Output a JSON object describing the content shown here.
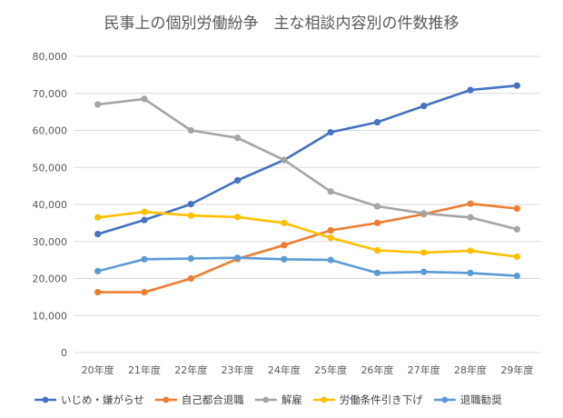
{
  "chart_data": {
    "type": "line",
    "title": "民事上の個別労働紛争　主な相談内容別の件数推移",
    "xlabel": "",
    "ylabel": "",
    "categories": [
      "20年度",
      "21年度",
      "22年度",
      "23年度",
      "24年度",
      "25年度",
      "26年度",
      "27年度",
      "28年度",
      "29年度"
    ],
    "ylim": [
      0,
      80000
    ],
    "yticks": [
      0,
      10000,
      20000,
      30000,
      40000,
      50000,
      60000,
      70000,
      80000
    ],
    "ytick_labels": [
      "0",
      "10,000",
      "20,000",
      "30,000",
      "40,000",
      "50,000",
      "60,000",
      "70,000",
      "80,000"
    ],
    "grid": true,
    "legend_position": "bottom",
    "series": [
      {
        "name": "いじめ・嫌がらせ",
        "color": "#4472c4",
        "values": [
          32000,
          35800,
          40100,
          46500,
          52000,
          59500,
          62200,
          66600,
          70900,
          72100
        ]
      },
      {
        "name": "自己都合退職",
        "color": "#ed7d31",
        "values": [
          16300,
          16300,
          20000,
          25300,
          29000,
          33000,
          35000,
          37400,
          40200,
          38900
        ]
      },
      {
        "name": "解雇",
        "color": "#a5a5a5",
        "values": [
          67000,
          68500,
          60000,
          58000,
          52000,
          43500,
          39500,
          37600,
          36500,
          33300
        ]
      },
      {
        "name": "労働条件引き下げ",
        "color": "#ffc000",
        "values": [
          36500,
          38000,
          37000,
          36600,
          35000,
          31000,
          27600,
          27000,
          27500,
          25900
        ]
      },
      {
        "name": "退職勧奨",
        "color": "#5b9bd5",
        "values": [
          22000,
          25200,
          25400,
          25600,
          25200,
          25000,
          21500,
          21800,
          21500,
          20700
        ]
      }
    ]
  }
}
